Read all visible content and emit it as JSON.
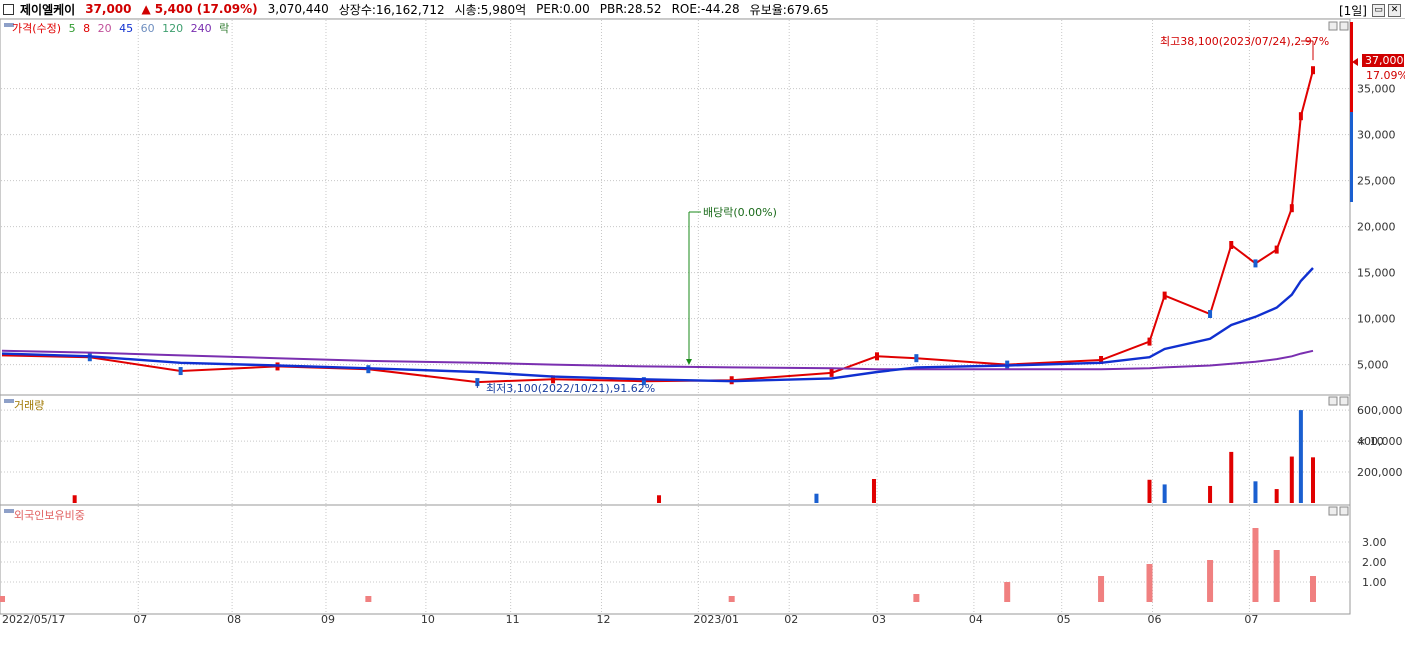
{
  "header": {
    "name": "제이엘케이",
    "price": "37,000",
    "change_arrow": "▲",
    "change": "5,400",
    "change_pct": "(17.09%)",
    "volume": "3,070,440",
    "listed": "상장수:16,162,712",
    "mktcap": "시총:5,980억",
    "per": "PER:0.00",
    "pbr": "PBR:28.52",
    "roe": "ROE:-44.28",
    "float": "유보율:679.65",
    "period": "[1일]"
  },
  "colors": {
    "up": "#e00000",
    "down": "#1a5fd0",
    "ma5": "#2e9a2e",
    "ma8": "#e00000",
    "ma20": "#c0509a",
    "ma45": "#1030d0",
    "ma60": "#6f8fc0",
    "ma120": "#3f9f6f",
    "ma240": "#7a2fb0",
    "foreign": "#f08080"
  },
  "legend": {
    "price": "가격(수정)",
    "ma5": "5",
    "ma8": "8",
    "ma20": "20",
    "ma45": "45",
    "ma60": "60",
    "ma120": "120",
    "ma240": "240",
    "ex": "락"
  },
  "annotations": {
    "high": "최고38,100(2023/07/24),2.97%",
    "low": "최저3,100(2022/10/21),91.62%",
    "dividend": "배당락(0.00%)",
    "last_price": "37,000",
    "last_pct": "17.09%"
  },
  "panels": {
    "volume_title": "거래량",
    "volume_unit": "× 10",
    "foreign_title": "외국인보유비중"
  },
  "chart_data": [
    {
      "type": "line",
      "title": "가격(수정)",
      "y_ticks": [
        "5,000",
        "10,000",
        "15,000",
        "20,000",
        "25,000",
        "30,000",
        "35,000"
      ],
      "x_labels": [
        "2022/05/17",
        "07",
        "08",
        "09",
        "10",
        "11",
        "12",
        "2023/01",
        "02",
        "03",
        "04",
        "05",
        "06",
        "07"
      ],
      "x": [
        "2022-05-17",
        "2022-06-15",
        "2022-07-15",
        "2022-08-16",
        "2022-09-15",
        "2022-10-21",
        "2022-11-15",
        "2022-12-15",
        "2023-01-13",
        "2023-02-15",
        "2023-03-02",
        "2023-03-15",
        "2023-04-14",
        "2023-05-15",
        "2023-05-31",
        "2023-06-05",
        "2023-06-20",
        "2023-06-27",
        "2023-07-05",
        "2023-07-12",
        "2023-07-17",
        "2023-07-20",
        "2023-07-24"
      ],
      "series": [
        {
          "name": "가격(수정)",
          "values": [
            6000,
            5800,
            4300,
            4800,
            4500,
            3100,
            3400,
            3200,
            3300,
            4100,
            5900,
            5700,
            5000,
            5500,
            7500,
            12500,
            10500,
            18000,
            16000,
            17500,
            22000,
            32000,
            37000
          ]
        },
        {
          "name": "240",
          "values": [
            6500,
            6300,
            6000,
            5700,
            5400,
            5200,
            5000,
            4800,
            4700,
            4600,
            4500,
            4500,
            4500,
            4500,
            4600,
            4700,
            4900,
            5100,
            5300,
            5600,
            5900,
            6200,
            6500
          ]
        },
        {
          "name": "45",
          "values": [
            6200,
            5900,
            5200,
            4900,
            4600,
            4200,
            3700,
            3400,
            3200,
            3500,
            4200,
            4700,
            4900,
            5200,
            5800,
            6700,
            7800,
            9300,
            10200,
            11200,
            12600,
            14100,
            15500
          ]
        }
      ],
      "high": 38100,
      "low": 3100
    },
    {
      "type": "bar",
      "title": "거래량",
      "y_ticks": [
        "200,000",
        "400,000",
        "600,000"
      ],
      "unit": "× 10",
      "x": [
        "2022-06-10",
        "2022-12-20",
        "2023-02-10",
        "2023-03-01",
        "2023-05-31",
        "2023-06-05",
        "2023-06-20",
        "2023-06-27",
        "2023-07-05",
        "2023-07-12",
        "2023-07-17",
        "2023-07-20",
        "2023-07-24"
      ],
      "values": [
        50000,
        50000,
        60000,
        155000,
        150000,
        120000,
        110000,
        330000,
        140000,
        90000,
        300000,
        600000,
        295000
      ]
    },
    {
      "type": "bar",
      "title": "외국인보유비중",
      "y_ticks": [
        "1.00",
        "2.00",
        "3.00"
      ],
      "x": [
        "2022-05-17",
        "2022-09-15",
        "2023-01-13",
        "2023-03-15",
        "2023-04-14",
        "2023-05-15",
        "2023-05-31",
        "2023-06-20",
        "2023-07-05",
        "2023-07-12",
        "2023-07-24"
      ],
      "values": [
        0.3,
        0.3,
        0.3,
        0.4,
        1.0,
        1.3,
        1.9,
        2.1,
        3.7,
        2.6,
        1.3
      ]
    }
  ]
}
